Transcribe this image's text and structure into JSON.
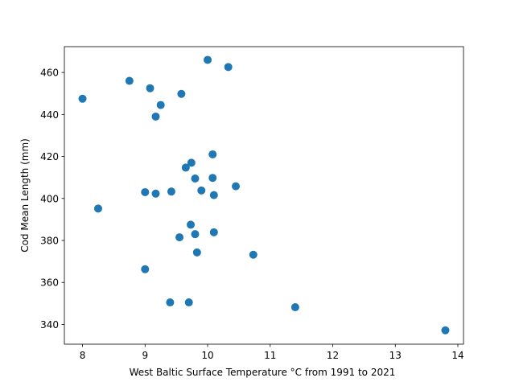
{
  "chart_data": {
    "type": "scatter",
    "title": "",
    "xlabel": "West Baltic Surface Temperature °C from 1991 to 2021",
    "ylabel": "Cod Mean Length (mm)",
    "xlim": [
      7.71,
      14.09
    ],
    "ylim": [
      330.6,
      472.3
    ],
    "xticks": [
      8,
      9,
      10,
      11,
      12,
      13,
      14
    ],
    "yticks": [
      340,
      360,
      380,
      400,
      420,
      440,
      460
    ],
    "grid": false,
    "legend": "none",
    "marker_color": "#1f77b4",
    "points": [
      {
        "x": 8.0,
        "y": 447.5
      },
      {
        "x": 8.25,
        "y": 395.2
      },
      {
        "x": 8.75,
        "y": 456.0
      },
      {
        "x": 9.0,
        "y": 403.0
      },
      {
        "x": 9.0,
        "y": 366.3
      },
      {
        "x": 9.08,
        "y": 452.5
      },
      {
        "x": 9.17,
        "y": 439.0
      },
      {
        "x": 9.17,
        "y": 402.3
      },
      {
        "x": 9.25,
        "y": 444.5
      },
      {
        "x": 9.4,
        "y": 350.5
      },
      {
        "x": 9.42,
        "y": 403.3
      },
      {
        "x": 9.55,
        "y": 381.5
      },
      {
        "x": 9.58,
        "y": 449.8
      },
      {
        "x": 9.65,
        "y": 414.7
      },
      {
        "x": 9.7,
        "y": 350.5
      },
      {
        "x": 9.73,
        "y": 387.5
      },
      {
        "x": 9.74,
        "y": 417.0
      },
      {
        "x": 9.8,
        "y": 409.5
      },
      {
        "x": 9.8,
        "y": 383.0
      },
      {
        "x": 9.83,
        "y": 374.3
      },
      {
        "x": 9.9,
        "y": 403.8
      },
      {
        "x": 10.0,
        "y": 466.0
      },
      {
        "x": 10.08,
        "y": 421.0
      },
      {
        "x": 10.08,
        "y": 409.8
      },
      {
        "x": 10.1,
        "y": 401.6
      },
      {
        "x": 10.1,
        "y": 383.9
      },
      {
        "x": 10.33,
        "y": 462.6
      },
      {
        "x": 10.45,
        "y": 405.8
      },
      {
        "x": 10.73,
        "y": 373.2
      },
      {
        "x": 11.4,
        "y": 348.2
      },
      {
        "x": 13.8,
        "y": 337.2
      }
    ]
  }
}
